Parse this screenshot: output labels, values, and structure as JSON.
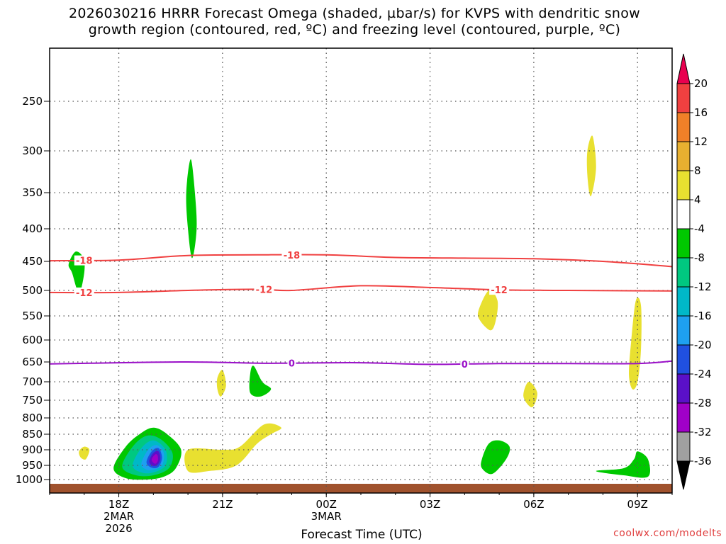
{
  "chart_data": {
    "type": "heatmap",
    "title_lines": [
      "2026030216 HRRR Forecast Omega (shaded, µbar/s) for KVPS with dendritic snow",
      "growth region (contoured, red, ºC) and freezing level (contoured, purple, ºC)"
    ],
    "xlabel": "Forecast Time (UTC)",
    "x_ticks": [
      {
        "label": "18Z",
        "sub": [
          "2MAR",
          "2026"
        ],
        "hour": 2
      },
      {
        "label": "21Z",
        "sub": [],
        "hour": 5
      },
      {
        "label": "00Z",
        "sub": [
          "3MAR"
        ],
        "hour": 8
      },
      {
        "label": "03Z",
        "sub": [],
        "hour": 11
      },
      {
        "label": "06Z",
        "sub": [],
        "hour": 14
      },
      {
        "label": "09Z",
        "sub": [],
        "hour": 17
      }
    ],
    "x_range_hours": [
      0,
      18
    ],
    "y_ticks": [
      250,
      300,
      350,
      400,
      450,
      500,
      550,
      600,
      650,
      700,
      750,
      800,
      850,
      900,
      950,
      1000
    ],
    "y_range_mb": [
      200,
      1025
    ],
    "colorbar": {
      "labels": [
        "20",
        "16",
        "12",
        "8",
        "4",
        "-4",
        "-8",
        "-12",
        "-16",
        "-20",
        "-24",
        "-28",
        "-32",
        "-36"
      ],
      "colors": [
        "#e8004f",
        "#f04040",
        "#f08028",
        "#e8b030",
        "#e8e030",
        "#ffffff",
        "#00c800",
        "#00c880",
        "#00b8c8",
        "#1ea0f0",
        "#2050e0",
        "#5a10c8",
        "#a000c8",
        "#a0a0a0",
        "#000000"
      ]
    },
    "contours": [
      {
        "name": "dgz-minus-18",
        "label": "-18",
        "color": "#f04040",
        "points_mb": [
          [
            0,
            449
          ],
          [
            2,
            448
          ],
          [
            4,
            441
          ],
          [
            6,
            440
          ],
          [
            8,
            440
          ],
          [
            10,
            444
          ],
          [
            12,
            445
          ],
          [
            14,
            446
          ],
          [
            16,
            450
          ],
          [
            18,
            459
          ]
        ],
        "label_hours": [
          1,
          7
        ]
      },
      {
        "name": "dgz-minus-12",
        "label": "-12",
        "color": "#f04040",
        "points_mb": [
          [
            0,
            504
          ],
          [
            2,
            504
          ],
          [
            4,
            500
          ],
          [
            6,
            498
          ],
          [
            7,
            500
          ],
          [
            9,
            492
          ],
          [
            11,
            495
          ],
          [
            13,
            499
          ],
          [
            15,
            500
          ],
          [
            18,
            501
          ]
        ],
        "label_hours": [
          1,
          6.2,
          13
        ]
      },
      {
        "name": "freezing-level",
        "label": "0",
        "color": "#9a10c8",
        "points_mb": [
          [
            0,
            655
          ],
          [
            2,
            652
          ],
          [
            4,
            650
          ],
          [
            6,
            653
          ],
          [
            7,
            653
          ],
          [
            9,
            652
          ],
          [
            11,
            656
          ],
          [
            13,
            654
          ],
          [
            15,
            654
          ],
          [
            17,
            654
          ],
          [
            18,
            648
          ]
        ],
        "label_hours": [
          7,
          12
        ]
      }
    ],
    "regions": [
      {
        "name": "upward-omega-2000z-upper",
        "color": "#00c800",
        "points": [
          [
            4,
            400
          ],
          [
            3.95,
            350
          ],
          [
            4.08,
            310
          ],
          [
            4.2,
            350
          ],
          [
            4.25,
            400
          ],
          [
            4.12,
            445
          ]
        ]
      },
      {
        "name": "upward-omega-0100z",
        "color": "#00c800",
        "points": [
          [
            0.55,
            455
          ],
          [
            0.75,
            435
          ],
          [
            0.98,
            445
          ],
          [
            1.0,
            470
          ],
          [
            0.85,
            505
          ],
          [
            0.65,
            470
          ]
        ]
      },
      {
        "name": "upward-omega-2200z",
        "color": "#00c800",
        "points": [
          [
            5.8,
            680
          ],
          [
            5.9,
            660
          ],
          [
            6.15,
            700
          ],
          [
            6.4,
            720
          ],
          [
            6.1,
            740
          ],
          [
            5.8,
            730
          ]
        ]
      },
      {
        "name": "upward-omega-0500z",
        "color": "#00c800",
        "points": [
          [
            12.5,
            930
          ],
          [
            12.7,
            880
          ],
          [
            13.0,
            870
          ],
          [
            13.3,
            890
          ],
          [
            13.2,
            930
          ],
          [
            12.8,
            980
          ],
          [
            12.5,
            960
          ]
        ]
      },
      {
        "name": "upward-omega-0900z",
        "color": "#00c800",
        "points": [
          [
            15.8,
            970
          ],
          [
            16.6,
            960
          ],
          [
            16.9,
            930
          ],
          [
            17.0,
            905
          ],
          [
            17.3,
            930
          ],
          [
            17.3,
            990
          ],
          [
            16.6,
            985
          ]
        ]
      },
      {
        "name": "sinking-omega-2200z-low",
        "color": "#e8e030",
        "points": [
          [
            4,
            900
          ],
          [
            5.0,
            900
          ],
          [
            5.5,
            890
          ],
          [
            6.2,
            820
          ],
          [
            6.7,
            830
          ],
          [
            6.4,
            850
          ],
          [
            6.0,
            880
          ],
          [
            5.4,
            950
          ],
          [
            4.6,
            970
          ],
          [
            4.0,
            970
          ]
        ]
      },
      {
        "name": "sinking-omega-2100z-small",
        "color": "#e8e030",
        "points": [
          [
            4.85,
            690
          ],
          [
            5.0,
            670
          ],
          [
            5.1,
            710
          ],
          [
            4.95,
            740
          ],
          [
            4.85,
            720
          ]
        ]
      },
      {
        "name": "sinking-omega-0800z-upper",
        "color": "#e8e030",
        "points": [
          [
            15.55,
            300
          ],
          [
            15.7,
            285
          ],
          [
            15.8,
            320
          ],
          [
            15.65,
            355
          ],
          [
            15.55,
            330
          ]
        ]
      },
      {
        "name": "sinking-omega-0500z-mid",
        "color": "#e8e030",
        "points": [
          [
            12.4,
            540
          ],
          [
            12.7,
            500
          ],
          [
            12.95,
            520
          ],
          [
            12.9,
            560
          ],
          [
            12.75,
            580
          ],
          [
            12.45,
            560
          ]
        ]
      },
      {
        "name": "sinking-omega-0700z",
        "color": "#e8e030",
        "points": [
          [
            13.7,
            740
          ],
          [
            13.85,
            700
          ],
          [
            14.1,
            730
          ],
          [
            13.95,
            770
          ]
        ]
      },
      {
        "name": "sinking-omega-0900z-column",
        "color": "#e8e030",
        "points": [
          [
            16.82,
            600
          ],
          [
            16.95,
            520
          ],
          [
            17.1,
            530
          ],
          [
            17.1,
            620
          ],
          [
            17.0,
            700
          ],
          [
            16.85,
            720
          ],
          [
            16.75,
            680
          ]
        ]
      },
      {
        "name": "sinking-omega-1700z",
        "color": "#e8e030",
        "points": [
          [
            0.85,
            905
          ],
          [
            1.0,
            890
          ],
          [
            1.15,
            900
          ],
          [
            1.05,
            930
          ],
          [
            0.9,
            925
          ]
        ]
      },
      {
        "name": "upward-omega-1900z-core-green",
        "color": "#00c800",
        "points": [
          [
            1.85,
            960
          ],
          [
            2.2,
            890
          ],
          [
            2.6,
            850
          ],
          [
            3.0,
            830
          ],
          [
            3.4,
            850
          ],
          [
            3.8,
            900
          ],
          [
            3.65,
            960
          ],
          [
            3.3,
            990
          ],
          [
            2.8,
            1000
          ],
          [
            2.2,
            995
          ]
        ]
      },
      {
        "name": "upward-omega-1900z-core-teal",
        "color": "#00c880",
        "points": [
          [
            2.1,
            955
          ],
          [
            2.4,
            890
          ],
          [
            2.8,
            855
          ],
          [
            3.2,
            865
          ],
          [
            3.55,
            910
          ],
          [
            3.45,
            960
          ],
          [
            3.0,
            985
          ],
          [
            2.5,
            985
          ]
        ]
      },
      {
        "name": "upward-omega-1900z-core-cyan",
        "color": "#00b8c8",
        "points": [
          [
            2.4,
            950
          ],
          [
            2.65,
            895
          ],
          [
            3.0,
            870
          ],
          [
            3.35,
            900
          ],
          [
            3.35,
            950
          ],
          [
            3.0,
            975
          ],
          [
            2.65,
            975
          ]
        ]
      },
      {
        "name": "upward-omega-1900z-core-blue",
        "color": "#1ea0f0",
        "points": [
          [
            2.65,
            945
          ],
          [
            2.85,
            900
          ],
          [
            3.1,
            885
          ],
          [
            3.3,
            910
          ],
          [
            3.25,
            950
          ],
          [
            3.0,
            965
          ],
          [
            2.8,
            965
          ]
        ]
      },
      {
        "name": "upward-omega-1900z-core-navy",
        "color": "#2050e0",
        "points": [
          [
            2.8,
            940
          ],
          [
            2.95,
            905
          ],
          [
            3.15,
            895
          ],
          [
            3.25,
            925
          ],
          [
            3.15,
            955
          ],
          [
            2.95,
            958
          ]
        ]
      },
      {
        "name": "upward-omega-1900z-core-violet",
        "color": "#5a10c8",
        "points": [
          [
            2.88,
            935
          ],
          [
            3.0,
            910
          ],
          [
            3.15,
            905
          ],
          [
            3.2,
            930
          ],
          [
            3.1,
            950
          ],
          [
            2.95,
            950
          ]
        ]
      },
      {
        "name": "upward-omega-1900z-core-purple",
        "color": "#a000c8",
        "points": [
          [
            2.95,
            932
          ],
          [
            3.05,
            915
          ],
          [
            3.12,
            918
          ],
          [
            3.13,
            935
          ],
          [
            3.05,
            945
          ]
        ]
      }
    ],
    "surface_color": "#a0522d"
  },
  "credit": "coolwx.com/modelts"
}
